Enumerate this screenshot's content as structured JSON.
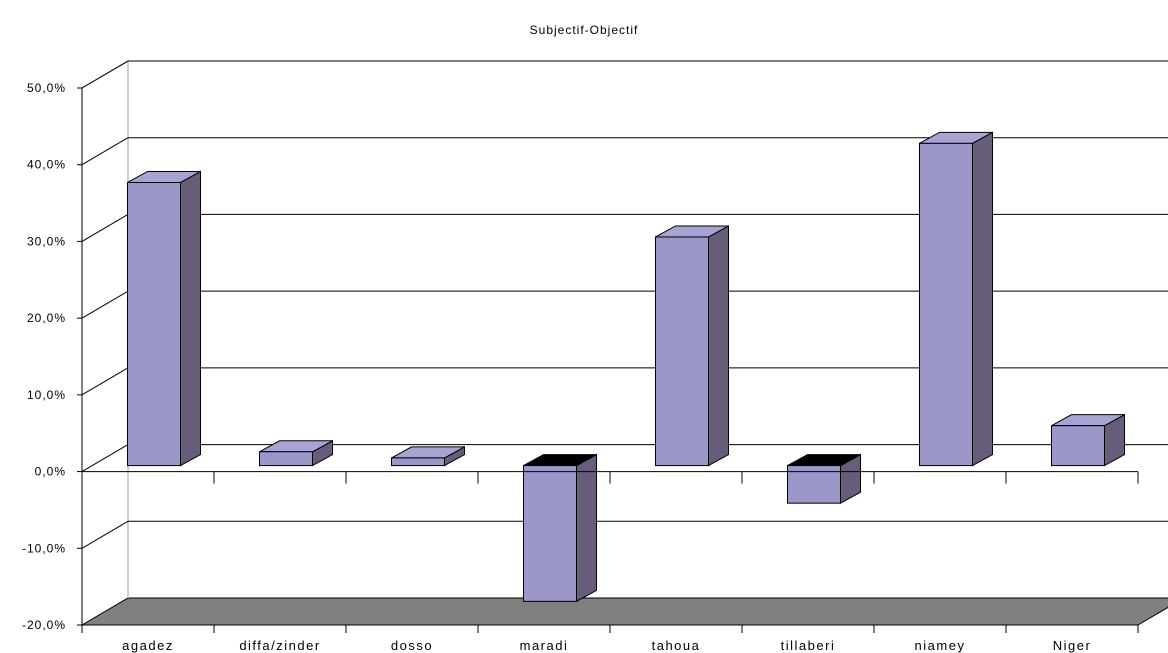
{
  "chart_data": {
    "type": "bar",
    "title": "Subjectif-Objectif",
    "xlabel": "",
    "ylabel": "",
    "categories": [
      "agadez",
      "diffa/zinder",
      "dosso",
      "maradi",
      "tahoua",
      "tillaberi",
      "niamey",
      "Niger"
    ],
    "series": [
      {
        "values": [
          36.9,
          1.8,
          1.0,
          -17.7,
          29.8,
          -4.9,
          42.0,
          5.2
        ]
      }
    ],
    "ylim": [
      -20,
      50
    ],
    "yticks": [
      50,
      40,
      30,
      20,
      10,
      0,
      -10,
      -20
    ],
    "ytick_labels": [
      "50,0%",
      "40,0%",
      "30,0%",
      "20,0%",
      "10,0%",
      "0,0%",
      "-10,0%",
      "-20,0%"
    ],
    "grid": true,
    "legend": "none",
    "three_d": true,
    "colors": {
      "bar_front": "#9b97c9",
      "bar_side": "#675d7a",
      "bar_top": "#a7a3d3",
      "bar_top_negative": "#000000",
      "floor": "#808080",
      "grid": "#000000",
      "wall": "#c0c0c0"
    }
  }
}
